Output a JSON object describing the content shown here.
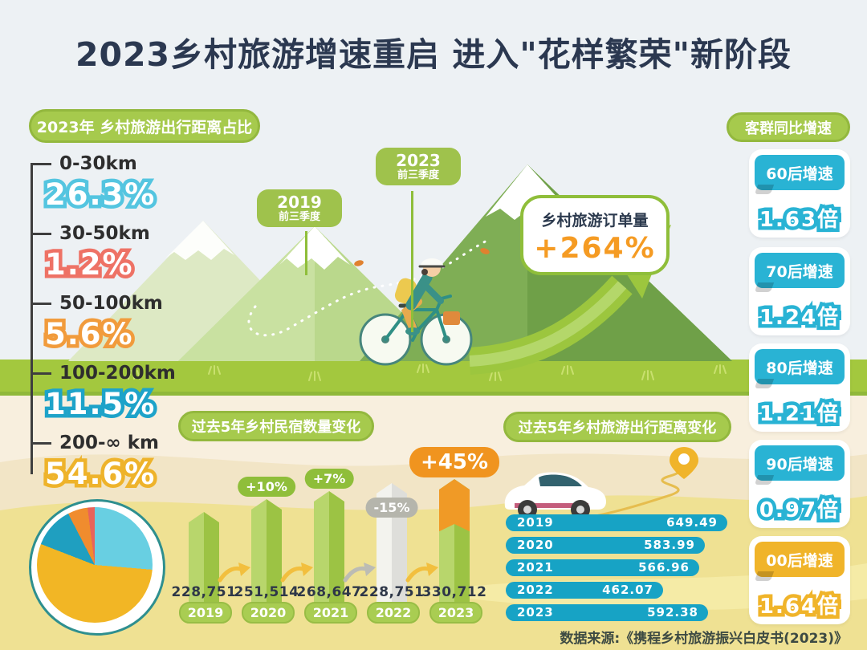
{
  "title": "2023乡村旅游增速重启  进入\"花样繁荣\"新阶段",
  "distance_share": {
    "header": "2023年 乡村旅游出行距离占比",
    "items": [
      {
        "range": "0-30km",
        "value": "26.3%",
        "color": "#54c5e0"
      },
      {
        "range": "30-50km",
        "value": "1.2%",
        "color": "#ee7265"
      },
      {
        "range": "50-100km",
        "value": "5.6%",
        "color": "#f19b3c"
      },
      {
        "range": "100-200km",
        "value": "11.5%",
        "color": "#1ea3c9"
      },
      {
        "range": "200-∞ km",
        "value": "54.6%",
        "color": "#eeb32b"
      }
    ]
  },
  "scene": {
    "bubbles": [
      {
        "year": "2019",
        "period": "前三季度"
      },
      {
        "year": "2023",
        "period": "前三季度"
      }
    ],
    "orders_label": "乡村旅游订单量",
    "orders_value": "+264%"
  },
  "sidebar": {
    "header": "客群同比增速",
    "items": [
      {
        "label": "60后增速",
        "value": "1.63倍",
        "color": "#29b3d4"
      },
      {
        "label": "70后增速",
        "value": "1.24倍",
        "color": "#29b3d4"
      },
      {
        "label": "80后增速",
        "value": "1.21倍",
        "color": "#29b3d4"
      },
      {
        "label": "90后增速",
        "value": "0.97倍",
        "color": "#29b3d4"
      },
      {
        "label": "00后增速",
        "value": "1.64倍",
        "color": "#f0b42a"
      }
    ]
  },
  "chart_data": [
    {
      "type": "bar",
      "title": "过去5年乡村民宿数量变化",
      "categories": [
        "2019",
        "2020",
        "2021",
        "2022",
        "2023"
      ],
      "values": [
        228751,
        251514,
        268647,
        228751,
        330712
      ],
      "value_labels": [
        "228,751",
        "251,514",
        "268,647",
        "228,751",
        "330,712"
      ],
      "change_labels": [
        "",
        "+10%",
        "+7%",
        "-15%",
        "+45%"
      ],
      "bar_styles": [
        "green",
        "green",
        "green",
        "gray",
        "orange-top"
      ],
      "arrow_colors": [
        "#f2bf3e",
        "#f2bf3e",
        "#bcbcb4",
        "#f2bf3e"
      ],
      "display_heights": [
        122,
        138,
        148,
        158,
        163
      ]
    },
    {
      "type": "bar-horizontal",
      "title": "过去5年乡村旅游出行距离变化",
      "categories": [
        "2019",
        "2020",
        "2021",
        "2022",
        "2023"
      ],
      "values": [
        649.49,
        583.99,
        566.96,
        462.07,
        592.38
      ],
      "value_labels": [
        "649.49",
        "583.99",
        "566.96",
        "462.07",
        "592.38"
      ],
      "bar_color": "#17a3c5"
    },
    {
      "type": "pie",
      "slices": [
        {
          "label": "0-30km",
          "value": 26.3,
          "color": "#68cfe2"
        },
        {
          "label": "200-∞ km",
          "value": 54.6,
          "color": "#f2b625"
        },
        {
          "label": "100-200km",
          "value": 11.5,
          "color": "#1f9fc0"
        },
        {
          "label": "50-100km",
          "value": 5.6,
          "color": "#f08c2e"
        },
        {
          "label": "30-50km",
          "value": 1.2,
          "color": "#e8635a"
        }
      ]
    }
  ],
  "source": "数据来源:《携程乡村旅游振兴白皮书(2023)》"
}
